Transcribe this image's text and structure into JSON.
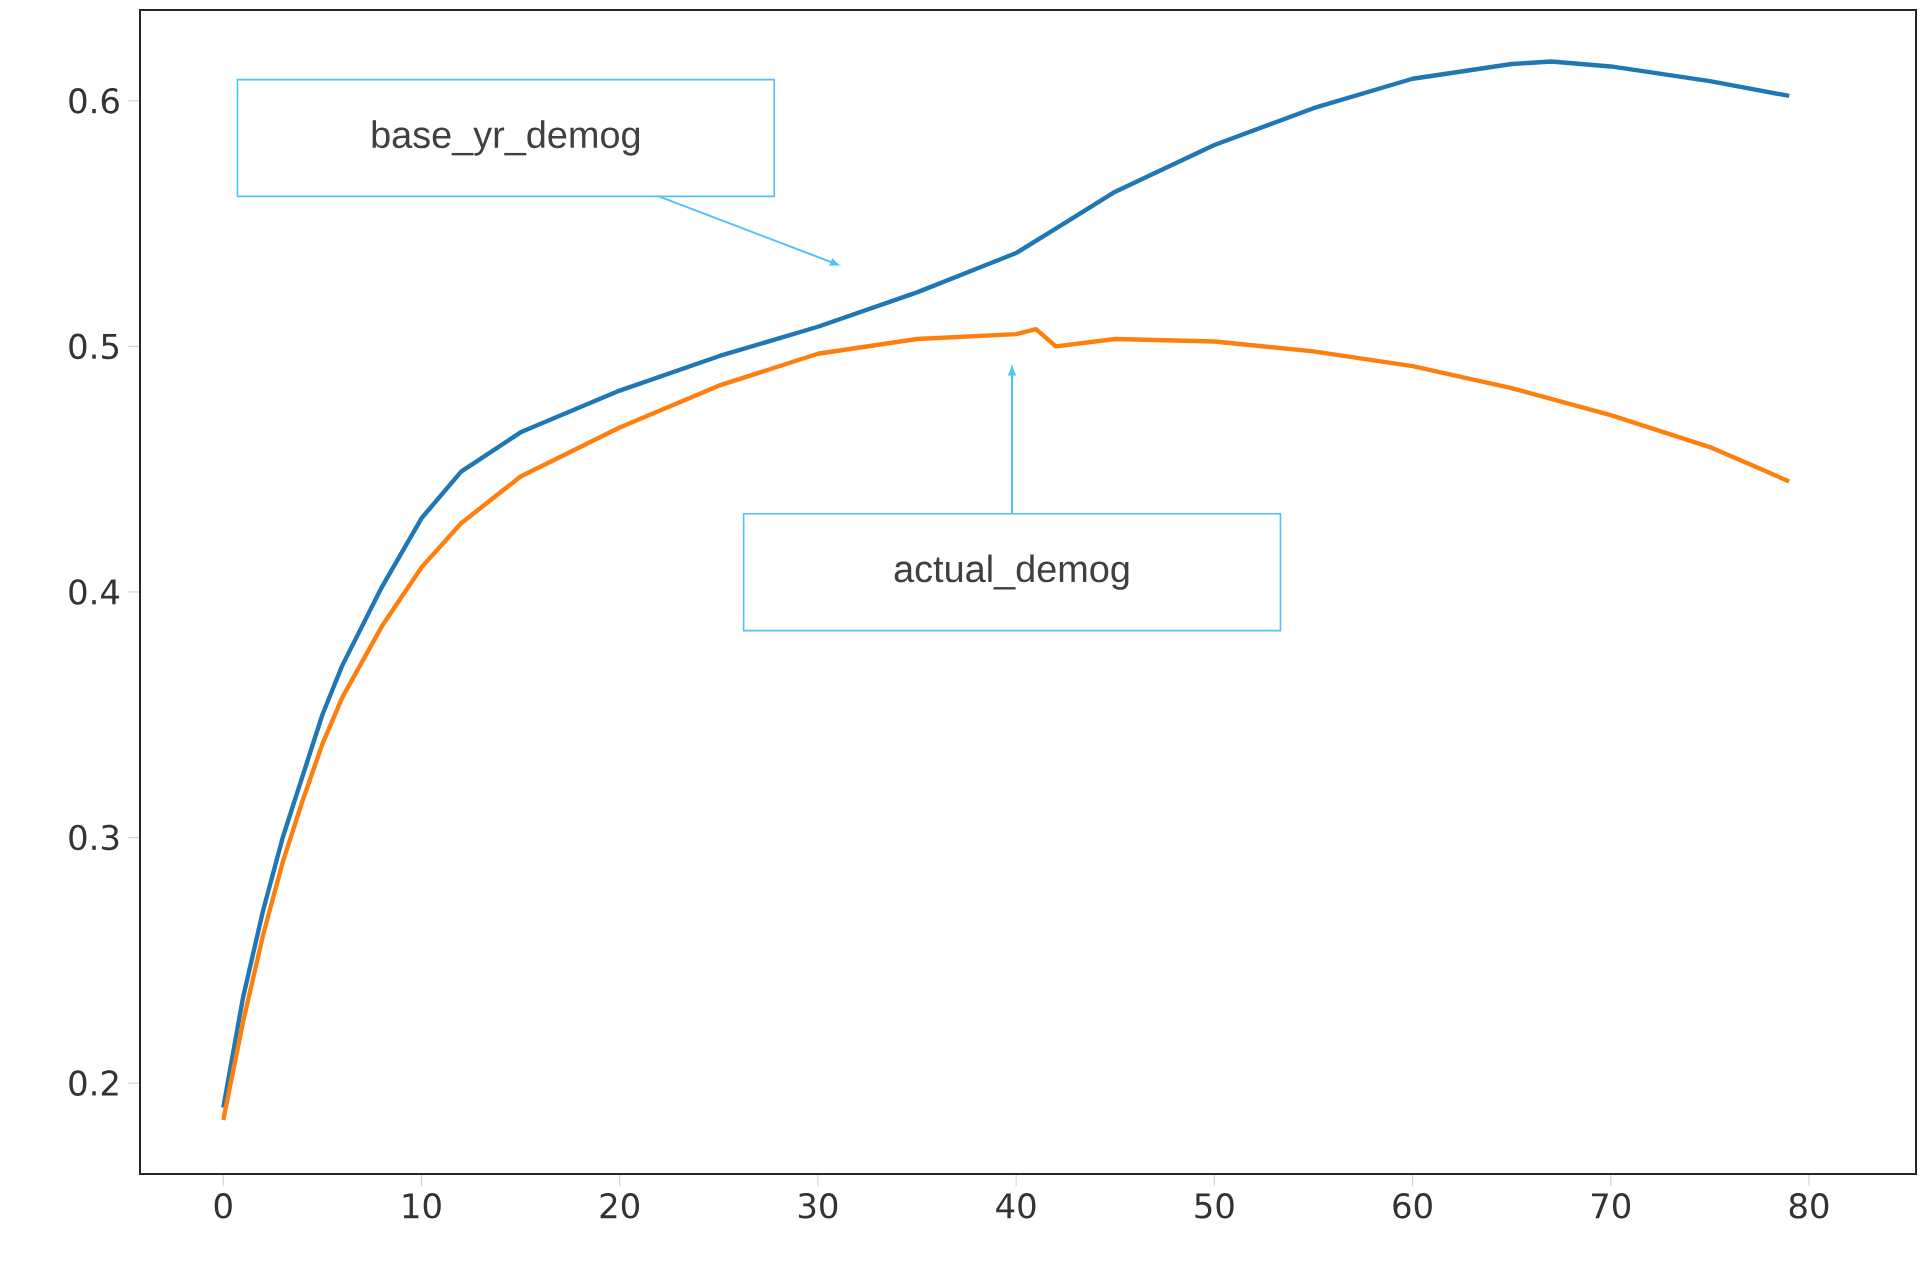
{
  "chart_data": {
    "type": "line",
    "xlim": [
      -4.2,
      85.4
    ],
    "ylim": [
      0.163,
      0.637
    ],
    "xticks": [
      0,
      10,
      20,
      30,
      40,
      50,
      60,
      70,
      80
    ],
    "yticks": [
      0.2,
      0.3,
      0.4,
      0.5,
      0.6
    ],
    "series": [
      {
        "color": "#1f77b4",
        "x": [
          0,
          1,
          2,
          3,
          4,
          5,
          6,
          8,
          10,
          12,
          15,
          20,
          25,
          30,
          35,
          40,
          42,
          45,
          50,
          55,
          60,
          65,
          67,
          70,
          75,
          79
        ],
        "values": [
          0.19,
          0.235,
          0.27,
          0.3,
          0.325,
          0.35,
          0.37,
          0.402,
          0.43,
          0.449,
          0.465,
          0.482,
          0.496,
          0.508,
          0.522,
          0.538,
          0.548,
          0.563,
          0.582,
          0.597,
          0.609,
          0.615,
          0.616,
          0.614,
          0.608,
          0.602
        ]
      },
      {
        "color": "#ff7f0e",
        "x": [
          0,
          1,
          2,
          3,
          4,
          5,
          6,
          8,
          10,
          12,
          15,
          20,
          25,
          30,
          35,
          40,
          41,
          42,
          45,
          50,
          55,
          60,
          65,
          70,
          75,
          79
        ],
        "values": [
          0.185,
          0.225,
          0.26,
          0.29,
          0.315,
          0.338,
          0.357,
          0.386,
          0.41,
          0.428,
          0.447,
          0.467,
          0.484,
          0.497,
          0.503,
          0.505,
          0.507,
          0.5,
          0.503,
          0.502,
          0.498,
          0.492,
          0.483,
          0.472,
          0.459,
          0.445
        ]
      }
    ],
    "annotations": [
      "base_yr_demog",
      "actual_demog"
    ]
  }
}
